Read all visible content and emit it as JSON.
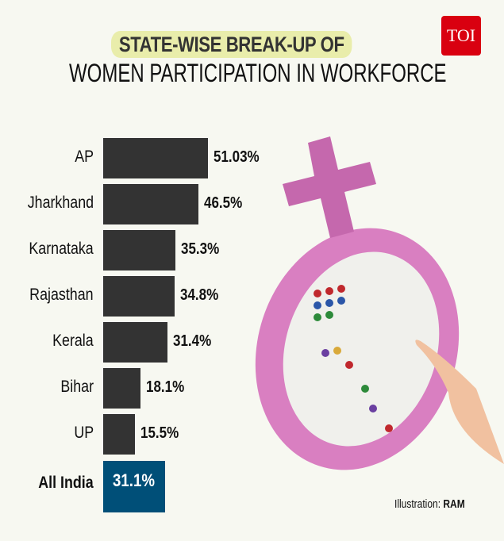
{
  "title_line1": "STATE-WISE BREAK-UP OF",
  "title_line2": "WOMEN PARTICIPATION IN WORKFORCE",
  "logo_text": "TOI",
  "credit_label": "Illustration:",
  "credit_name": "RAM",
  "colors": {
    "bar": "#333333",
    "highlight": "#004f78",
    "title_highlight": "#e9edab",
    "logo": "#d90010"
  },
  "chart_data": {
    "type": "bar",
    "orientation": "horizontal",
    "categories": [
      "AP",
      "Jharkhand",
      "Karnataka",
      "Rajasthan",
      "Kerala",
      "Bihar",
      "UP",
      "All India"
    ],
    "values": [
      51.03,
      46.5,
      35.3,
      34.8,
      31.4,
      18.1,
      15.5,
      31.1
    ],
    "labels": [
      "51.03%",
      "46.5%",
      "35.3%",
      "34.8%",
      "31.4%",
      "18.1%",
      "15.5%",
      "31.1%"
    ],
    "title": "STATE-WISE BREAK-UP OF WOMEN PARTICIPATION IN WORKFORCE",
    "grid": false
  }
}
